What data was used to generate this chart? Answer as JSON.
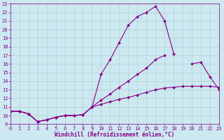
{
  "xlabel": "Windchill (Refroidissement éolien,°C)",
  "bg_color": "#cce8f0",
  "line_color": "#880088",
  "ylim": [
    9,
    23
  ],
  "xlim": [
    0,
    23
  ],
  "yticks": [
    9,
    10,
    11,
    12,
    13,
    14,
    15,
    16,
    17,
    18,
    19,
    20,
    21,
    22,
    23
  ],
  "xticks": [
    0,
    1,
    2,
    3,
    4,
    5,
    6,
    7,
    8,
    9,
    10,
    11,
    12,
    13,
    14,
    15,
    16,
    17,
    18,
    19,
    20,
    21,
    22,
    23
  ],
  "line1_x": [
    0,
    1,
    2,
    3,
    4,
    5,
    6,
    7,
    8,
    9,
    10,
    11,
    12,
    13,
    14,
    15,
    16,
    17,
    18,
    19,
    20,
    21,
    22,
    23
  ],
  "line1_y": [
    10.5,
    10.5,
    10.2,
    9.3,
    9.5,
    9.8,
    10.0,
    10.0,
    10.1,
    11.0,
    14.8,
    16.5,
    18.5,
    20.5,
    21.5,
    22.0,
    22.7,
    21.0,
    17.2,
    null,
    null,
    null,
    null,
    null
  ],
  "line2_x": [
    0,
    1,
    2,
    3,
    4,
    5,
    6,
    7,
    8,
    9,
    10,
    11,
    12,
    13,
    14,
    15,
    16,
    17,
    18,
    19,
    20,
    21,
    22,
    23
  ],
  "line2_y": [
    10.5,
    10.5,
    10.2,
    9.3,
    9.5,
    9.8,
    10.0,
    10.0,
    10.1,
    11.0,
    11.8,
    12.5,
    13.3,
    14.0,
    14.8,
    15.5,
    16.5,
    17.0,
    null,
    null,
    16.0,
    16.2,
    14.5,
    13.0
  ],
  "line3_x": [
    0,
    1,
    2,
    3,
    4,
    5,
    6,
    7,
    8,
    9,
    10,
    11,
    12,
    13,
    14,
    15,
    16,
    17,
    18,
    19,
    20,
    21,
    22,
    23
  ],
  "line3_y": [
    10.5,
    10.5,
    10.2,
    9.3,
    9.5,
    9.8,
    10.0,
    10.0,
    10.1,
    11.0,
    11.3,
    11.6,
    11.9,
    12.1,
    12.4,
    12.7,
    13.0,
    13.2,
    13.3,
    13.4,
    13.4,
    13.4,
    13.4,
    13.3
  ],
  "grid_color": "#aacccc",
  "marker": "D",
  "marker_size": 2,
  "line_width": 0.8,
  "tick_fontsize": 5,
  "xlabel_fontsize": 5.5
}
